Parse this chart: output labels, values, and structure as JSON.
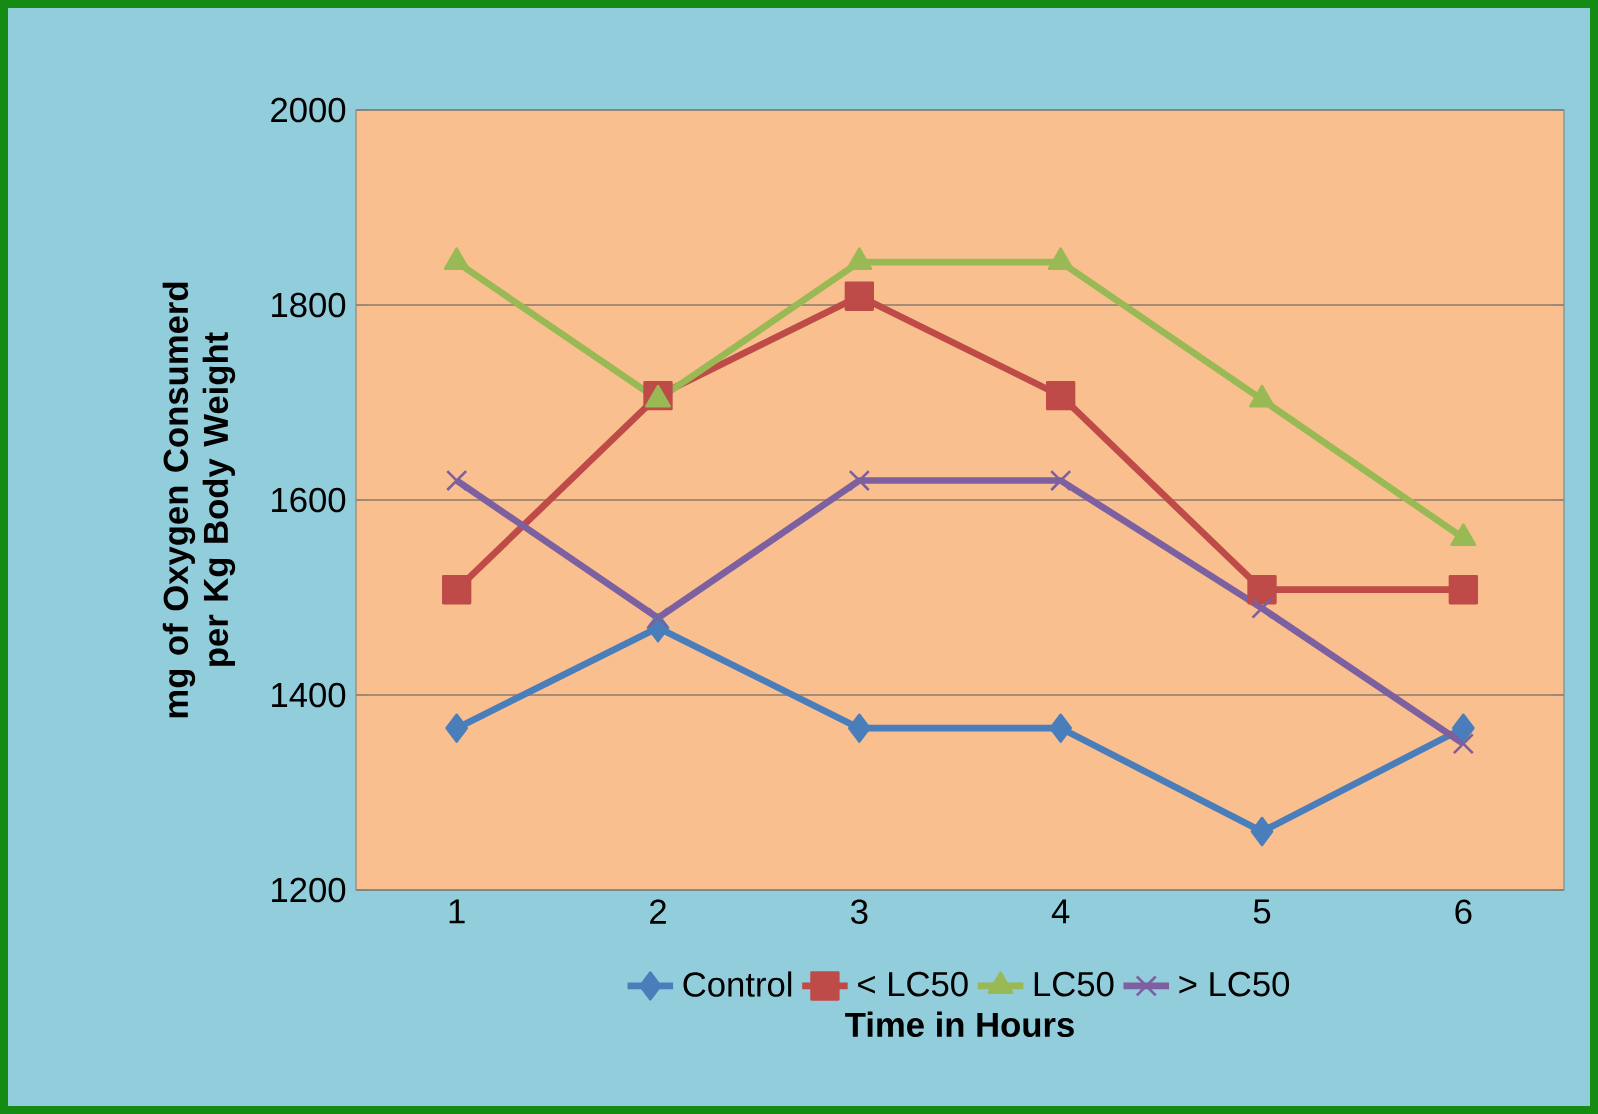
{
  "chart_data": {
    "type": "line",
    "xlabel": "Time in Hours",
    "ylabel": "mg of Oxygen Consumerd per Kg Body Weight",
    "categories": [
      "1",
      "2",
      "3",
      "4",
      "5",
      "6"
    ],
    "ylim": [
      1200,
      2000
    ],
    "yticks": [
      1200,
      1400,
      1600,
      1800,
      2000
    ],
    "grid": "y",
    "legend": "bottom",
    "line_style": "solid",
    "series": [
      {
        "name": "Control",
        "color": "#4a7ebb",
        "marker": "diamond",
        "values": [
          1366,
          1469,
          1366,
          1366,
          1260,
          1366
        ]
      },
      {
        "name": "< LC50",
        "color": "#be4b48",
        "marker": "square",
        "values": [
          1508,
          1707,
          1809,
          1707,
          1508,
          1508
        ]
      },
      {
        "name": "LC50",
        "color": "#98b954",
        "marker": "triangle",
        "values": [
          1844,
          1703,
          1844,
          1844,
          1703,
          1561
        ]
      },
      {
        "name": "> LC50",
        "color": "#7d60a0",
        "marker": "cross",
        "values": [
          1620,
          1479,
          1620,
          1620,
          1489,
          1350
        ]
      }
    ]
  }
}
